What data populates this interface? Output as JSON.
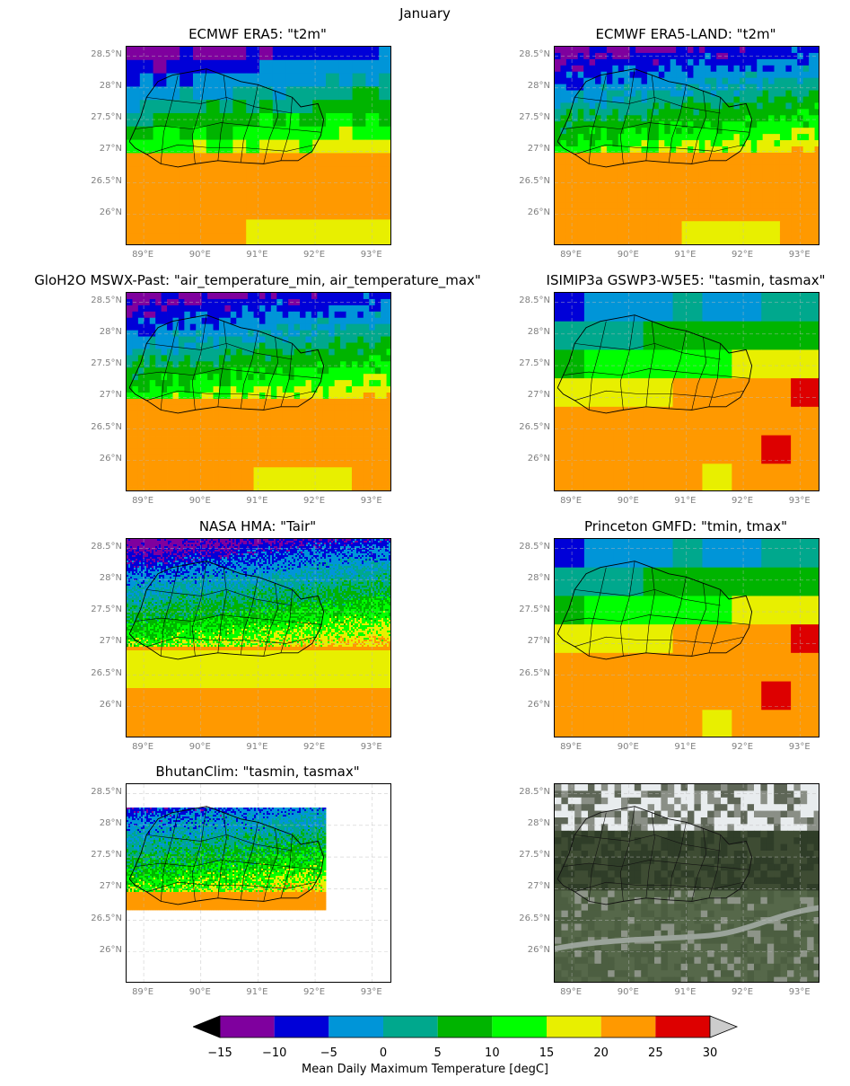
{
  "figure": {
    "suptitle": "January",
    "lat_ticks": [
      "28.5°N",
      "28°N",
      "27.5°N",
      "27°N",
      "26.5°N",
      "26°N"
    ],
    "lon_ticks": [
      "89°E",
      "90°E",
      "91°E",
      "92°E",
      "93°E"
    ],
    "panels": [
      {
        "title": "ECMWF ERA5: \"t2m\"",
        "kind": "coarse"
      },
      {
        "title": "ECMWF ERA5-LAND: \"t2m\"",
        "kind": "medium"
      },
      {
        "title": "GloH2O MSWX-Past: \"air_temperature_min, air_temperature_max\"",
        "kind": "medium"
      },
      {
        "title": "ISIMIP3a GSWP3-W5E5: \"tasmin, tasmax\"",
        "kind": "coarse-large"
      },
      {
        "title": "NASA HMA: \"Tair\"",
        "kind": "fine"
      },
      {
        "title": "Princeton GMFD: \"tmin, tmax\"",
        "kind": "coarse-large"
      },
      {
        "title": "BhutanClim: \"tasmin, tasmax\"",
        "kind": "bhutan-only"
      },
      {
        "title": "",
        "kind": "satellite"
      }
    ]
  },
  "colorbar": {
    "label": "Mean Daily Maximum Temperature [degC]",
    "ticks": [
      "−15",
      "−10",
      "−5",
      "0",
      "5",
      "10",
      "15",
      "20",
      "25",
      "30"
    ],
    "bins": [
      {
        "range": "-15 to -10",
        "color": "#7f009e"
      },
      {
        "range": "-10 to -5",
        "color": "#0000d8"
      },
      {
        "range": "-5 to 0",
        "color": "#0095d8"
      },
      {
        "range": "0 to 5",
        "color": "#00a88d"
      },
      {
        "range": "5 to 10",
        "color": "#00b400"
      },
      {
        "range": "10 to 15",
        "color": "#00ff00"
      },
      {
        "range": "15 to 20",
        "color": "#e8ef00"
      },
      {
        "range": "20 to 25",
        "color": "#ff9900"
      },
      {
        "range": "25 to 30",
        "color": "#dd0000"
      }
    ],
    "under_color": "#000000",
    "over_color": "#cccccc"
  }
}
